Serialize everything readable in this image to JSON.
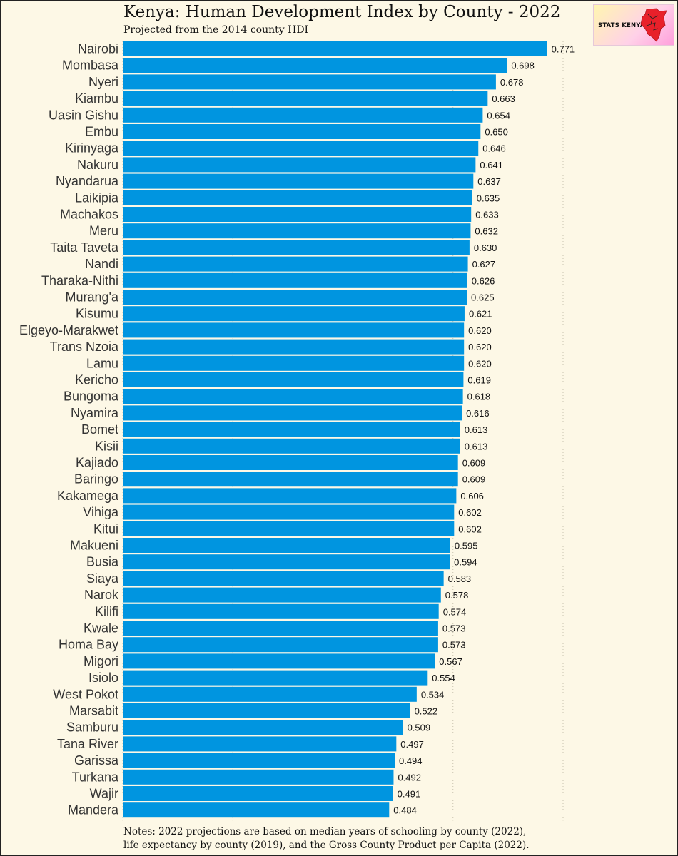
{
  "title": "Kenya: Human Development Index by County - 2022",
  "subtitle": "Projected from the 2014 county HDI",
  "notes_line1": "Notes: 2022 projections are based on median years of schooling by county (2022),",
  "notes_line2": "life expectancy by county (2019), and the Gross County Product per Capita (2022).",
  "logo_text": "STATS KENYA",
  "colors": {
    "bar": "#0095e0",
    "background": "#fdf8e6"
  },
  "chart_data": {
    "type": "bar",
    "orientation": "horizontal",
    "title": "Kenya: Human Development Index by County - 2022",
    "subtitle": "Projected from the 2014 county HDI",
    "xlabel": "",
    "ylabel": "",
    "xlim": [
      0,
      0.8
    ],
    "gridlines_at": [
      0,
      0.2,
      0.4,
      0.6,
      0.8
    ],
    "categories": [
      "Nairobi",
      "Mombasa",
      "Nyeri",
      "Kiambu",
      "Uasin Gishu",
      "Embu",
      "Kirinyaga",
      "Nakuru",
      "Nyandarua",
      "Laikipia",
      "Machakos",
      "Meru",
      "Taita Taveta",
      "Nandi",
      "Tharaka-Nithi",
      "Murang'a",
      "Kisumu",
      "Elgeyo-Marakwet",
      "Trans Nzoia",
      "Lamu",
      "Kericho",
      "Bungoma",
      "Nyamira",
      "Bomet",
      "Kisii",
      "Kajiado",
      "Baringo",
      "Kakamega",
      "Vihiga",
      "Kitui",
      "Makueni",
      "Busia",
      "Siaya",
      "Narok",
      "Kilifi",
      "Kwale",
      "Homa Bay",
      "Migori",
      "Isiolo",
      "West Pokot",
      "Marsabit",
      "Samburu",
      "Tana River",
      "Garissa",
      "Turkana",
      "Wajir",
      "Mandera"
    ],
    "values": [
      0.771,
      0.698,
      0.678,
      0.663,
      0.654,
      0.65,
      0.646,
      0.641,
      0.637,
      0.635,
      0.633,
      0.632,
      0.63,
      0.627,
      0.626,
      0.625,
      0.621,
      0.62,
      0.62,
      0.62,
      0.619,
      0.618,
      0.616,
      0.613,
      0.613,
      0.609,
      0.609,
      0.606,
      0.602,
      0.602,
      0.595,
      0.594,
      0.583,
      0.578,
      0.574,
      0.573,
      0.573,
      0.567,
      0.554,
      0.534,
      0.522,
      0.509,
      0.497,
      0.494,
      0.492,
      0.491,
      0.484
    ],
    "value_labels": [
      "0.771",
      "0.698",
      "0.678",
      "0.663",
      "0.654",
      "0.650",
      "0.646",
      "0.641",
      "0.637",
      "0.635",
      "0.633",
      "0.632",
      "0.630",
      "0.627",
      "0.626",
      "0.625",
      "0.621",
      "0.620",
      "0.620",
      "0.620",
      "0.619",
      "0.618",
      "0.616",
      "0.613",
      "0.613",
      "0.609",
      "0.609",
      "0.606",
      "0.602",
      "0.602",
      "0.595",
      "0.594",
      "0.583",
      "0.578",
      "0.574",
      "0.573",
      "0.573",
      "0.567",
      "0.554",
      "0.534",
      "0.522",
      "0.509",
      "0.497",
      "0.494",
      "0.492",
      "0.491",
      "0.484"
    ]
  }
}
